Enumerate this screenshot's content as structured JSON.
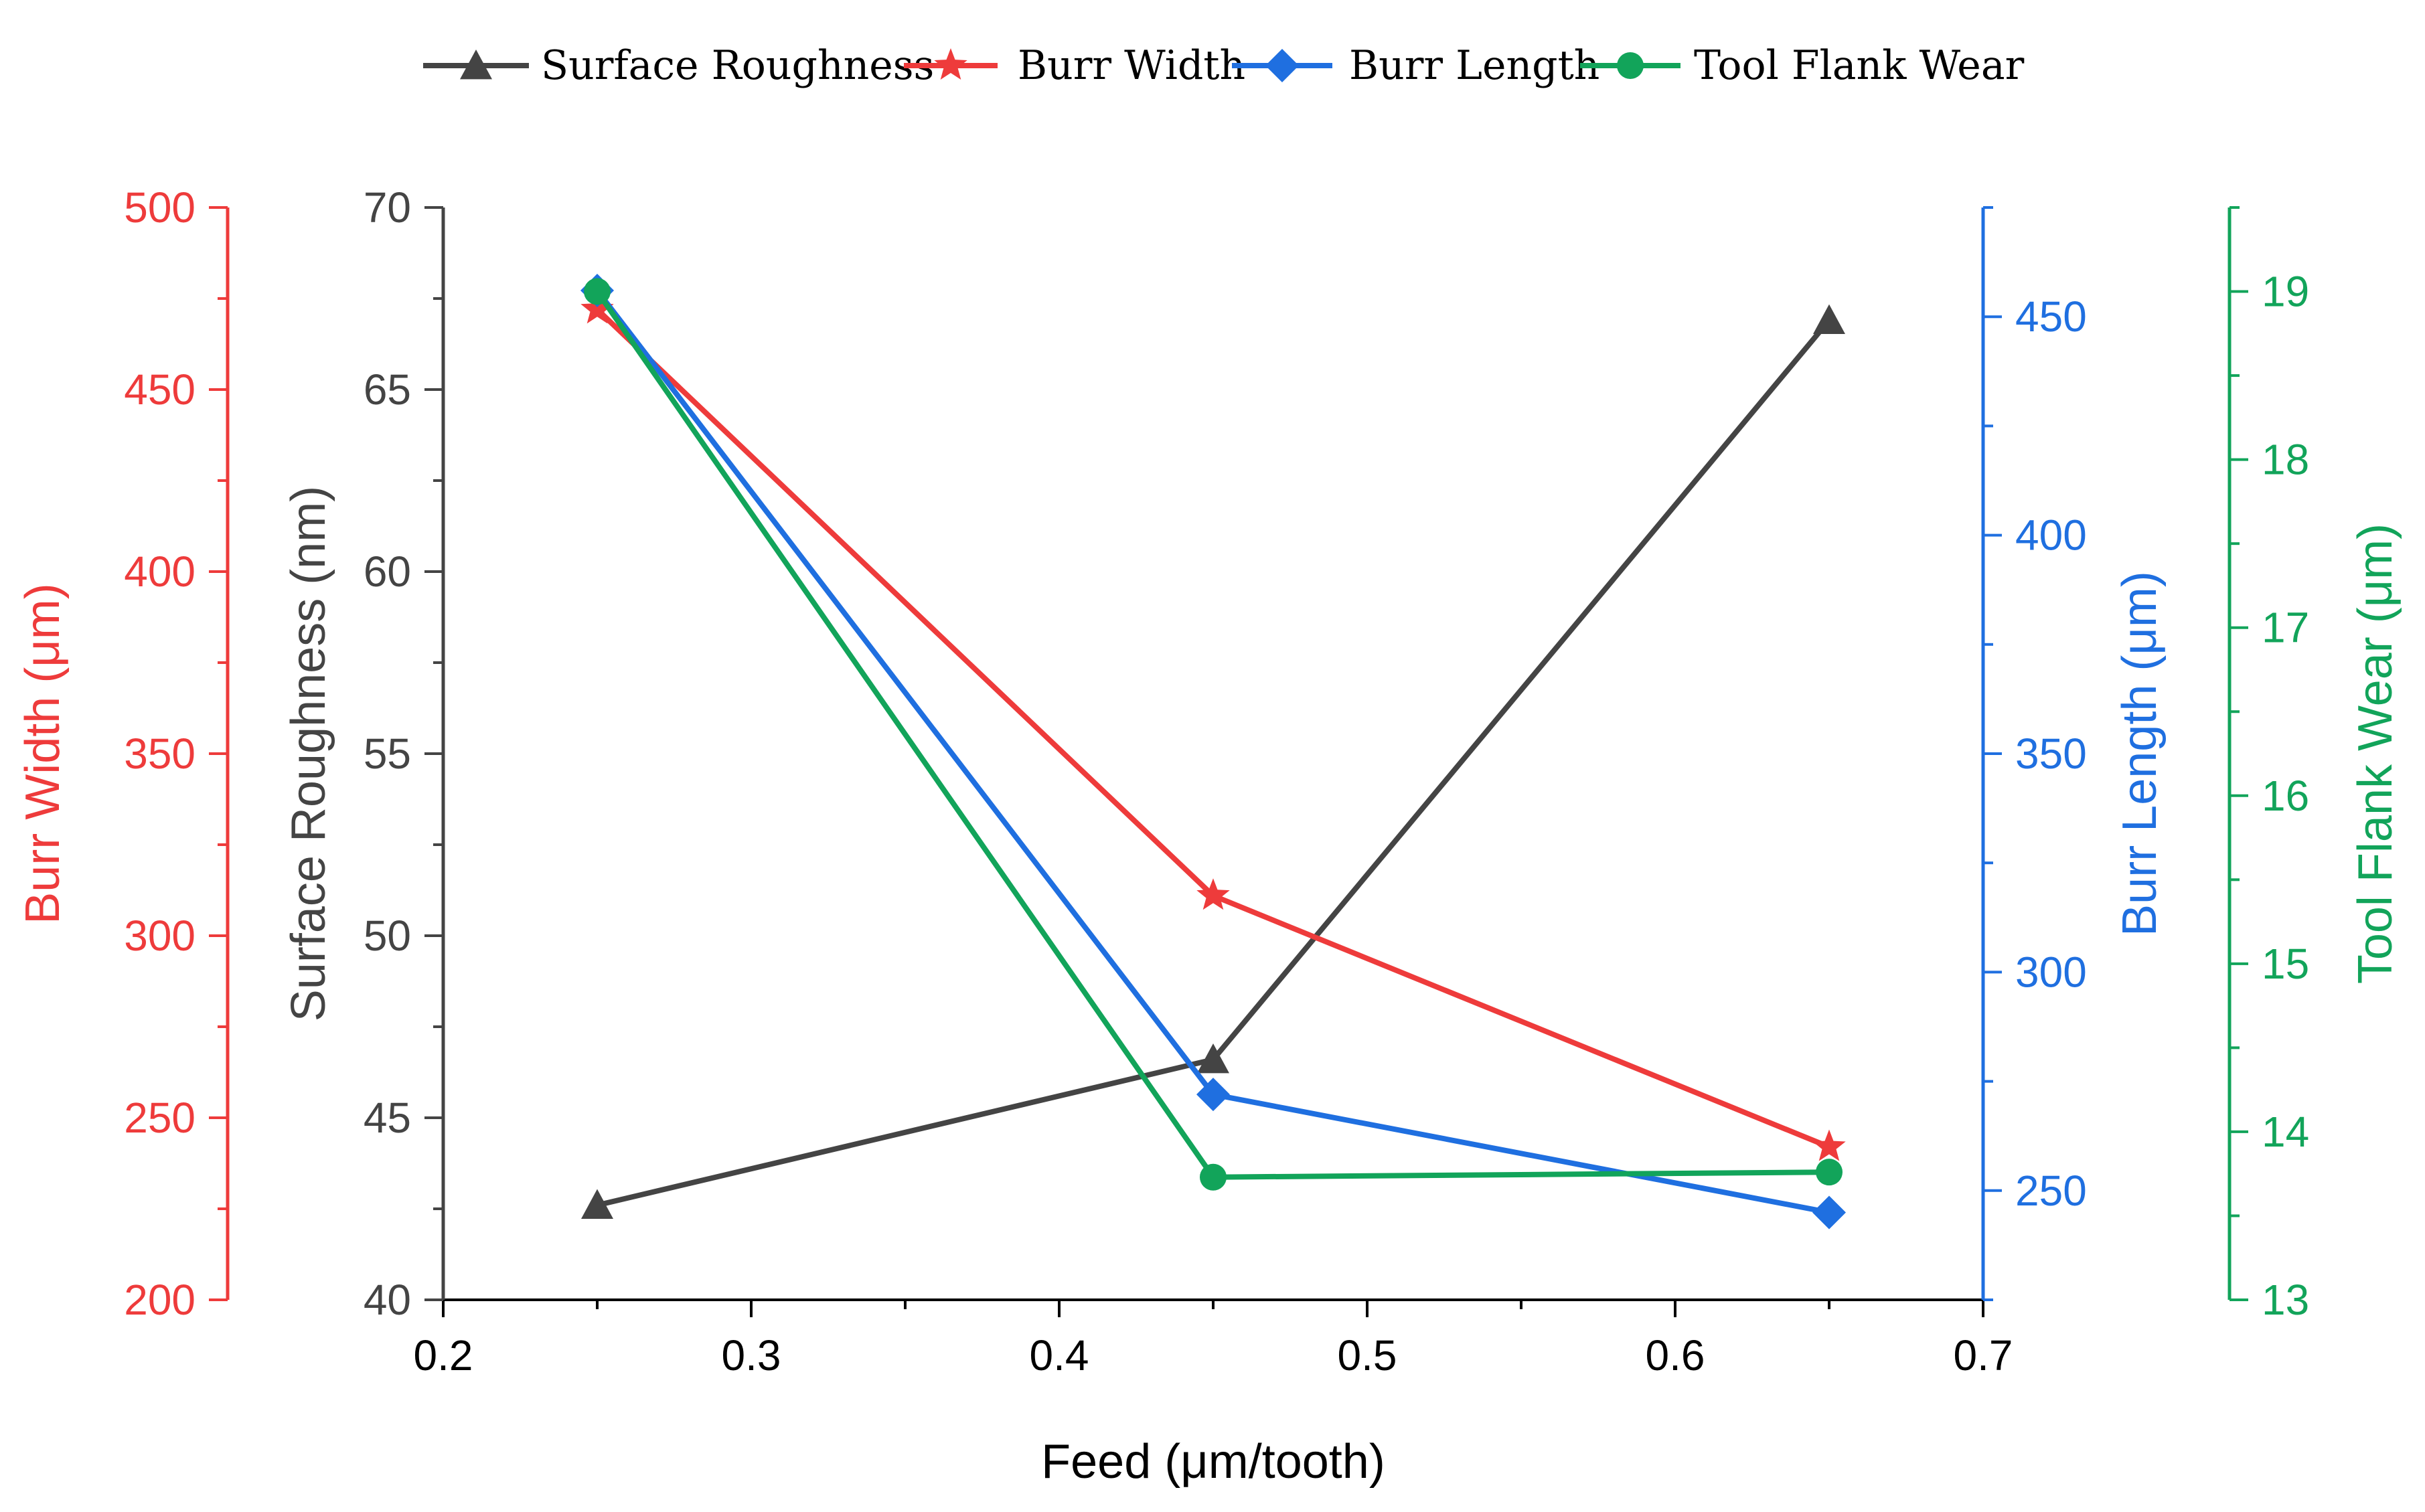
{
  "chart_data": {
    "type": "line",
    "x": [
      0.25,
      0.45,
      0.65
    ],
    "xlabel": "Feed (μm/tooth)",
    "xlim": [
      0.2,
      0.7
    ],
    "xticks": [
      "0.2",
      "0.3",
      "0.4",
      "0.5",
      "0.6",
      "0.7"
    ],
    "legend_position": "top-center",
    "series": [
      {
        "name": "Surface Roughness",
        "color": "#444444",
        "marker": "triangle",
        "values": [
          42.6,
          46.6,
          66.9
        ],
        "axis_label": "Surface Roughness (nm)",
        "axis_side": "left-inner",
        "ylim": [
          40,
          70
        ],
        "ticks": [
          "40",
          "45",
          "50",
          "55",
          "60",
          "65",
          "70"
        ]
      },
      {
        "name": "Burr Width",
        "color": "#ee3b3b",
        "marker": "star",
        "values": [
          472,
          311,
          242
        ],
        "axis_label": "Burr Width (μm)",
        "axis_side": "left-outer",
        "ylim": [
          200,
          500
        ],
        "ticks": [
          "200",
          "250",
          "300",
          "350",
          "400",
          "450",
          "500"
        ]
      },
      {
        "name": "Burr Length",
        "color": "#1f6fe0",
        "marker": "diamond",
        "values": [
          456,
          272,
          245
        ],
        "axis_label": "Burr Length (μm)",
        "axis_side": "right-inner",
        "ylim": [
          225,
          475
        ],
        "ticks": [
          "250",
          "300",
          "350",
          "400",
          "450"
        ]
      },
      {
        "name": "Tool Flank Wear",
        "color": "#12a45a",
        "marker": "circle",
        "values": [
          19.0,
          13.73,
          13.76
        ],
        "axis_label": "Tool Flank Wear (μm)",
        "axis_side": "right-outer",
        "ylim": [
          13,
          19.5
        ],
        "ticks": [
          "13",
          "14",
          "15",
          "16",
          "17",
          "18",
          "19"
        ]
      }
    ]
  }
}
